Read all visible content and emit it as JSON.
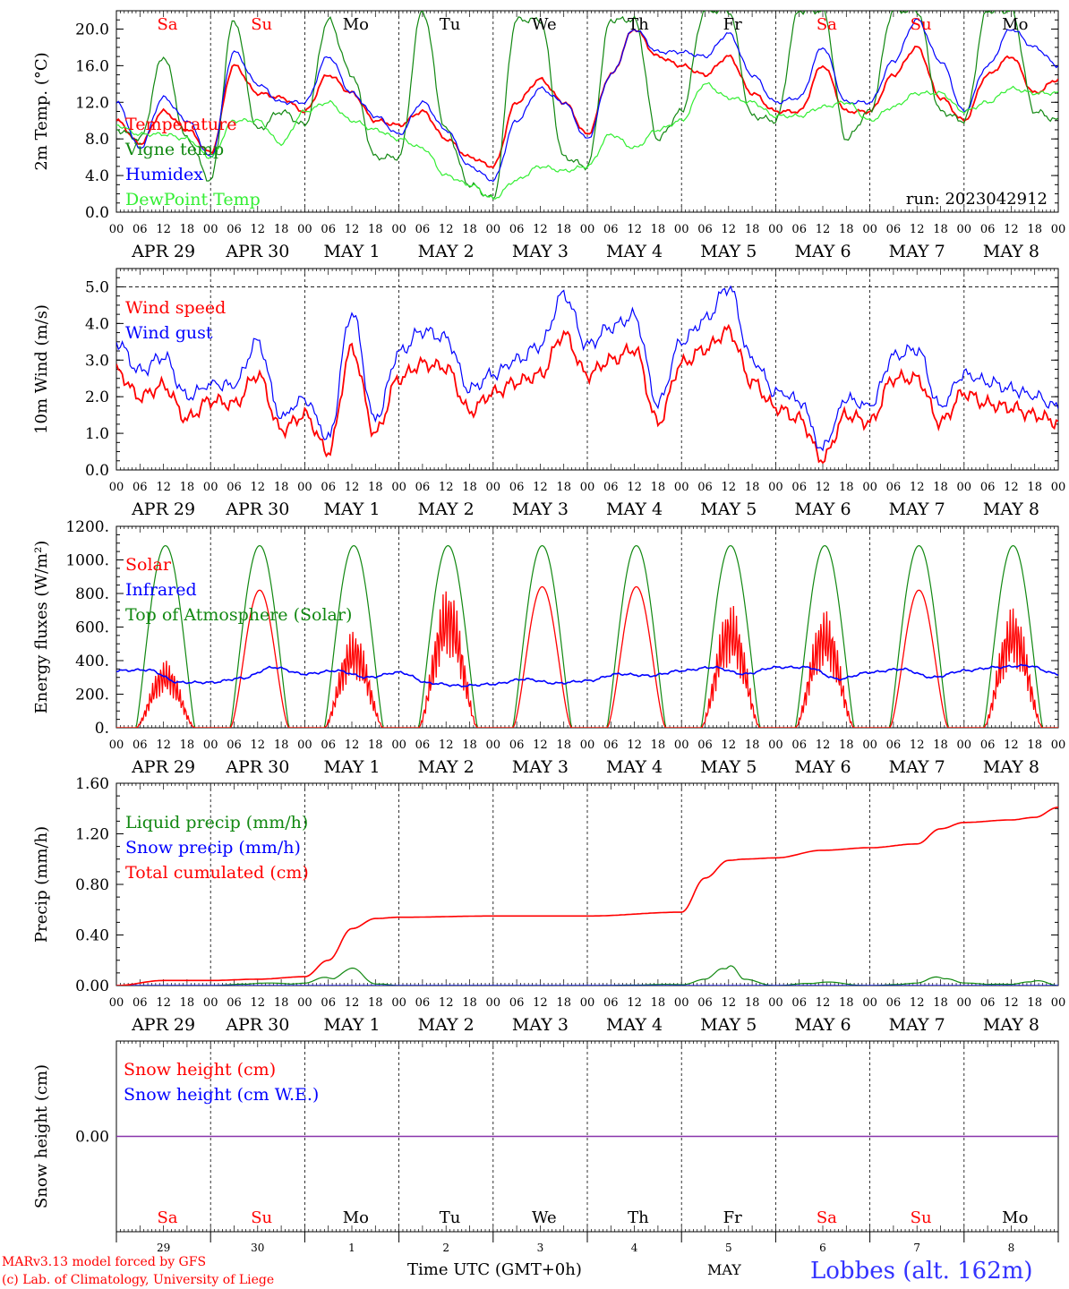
{
  "run_label": "run: 2023042912",
  "days": {
    "abbrev": [
      "Sa",
      "Su",
      "Mo",
      "Tu",
      "We",
      "Th",
      "Fr",
      "Sa",
      "Su",
      "Mo"
    ],
    "weekend": [
      true,
      true,
      false,
      false,
      false,
      false,
      false,
      true,
      true,
      false
    ],
    "dates": [
      "APR 29",
      "APR 30",
      "MAY  1",
      "MAY  2",
      "MAY  3",
      "MAY  4",
      "MAY  5",
      "MAY  6",
      "MAY  7",
      "MAY  8"
    ],
    "day_numbers": [
      "29",
      "30",
      "1",
      "2",
      "3",
      "4",
      "5",
      "6",
      "7",
      "8"
    ]
  },
  "hour_ticks": [
    "00",
    "06",
    "12",
    "18"
  ],
  "hour_tick_end": "00",
  "footer": {
    "model_line": "MARv3.13 model forced by GFS",
    "copyright_line": "(c) Lab. of Climatology, University of Liege",
    "time_label": "Time UTC (GMT+0h)",
    "month_label": "MAY",
    "station": "Lobbes (alt. 162m)"
  },
  "colors": {
    "red": "#ff0000",
    "dark_green": "#118811",
    "blue": "#0000ff",
    "light_green": "#33ee33",
    "purple": "#8833aa",
    "station": "#3333ff"
  },
  "chart_data": [
    {
      "type": "line",
      "ylabel": "2m Temp. (°C)",
      "ylim": [
        0,
        22
      ],
      "y_ticks": [
        "0.0",
        "4.0",
        "8.0",
        "12.0",
        "16.0",
        "20.0"
      ],
      "y_tick_values": [
        0,
        4,
        8,
        12,
        16,
        20
      ],
      "legend_placement": "top-left",
      "dashed_y": null,
      "x_hours": [
        0,
        6,
        12,
        18,
        24,
        30,
        36,
        42,
        48,
        54,
        60,
        66,
        72,
        78,
        84,
        90,
        96,
        102,
        108,
        114,
        120,
        126,
        132,
        138,
        144,
        150,
        156,
        162,
        168,
        174,
        180,
        186,
        192,
        198,
        204,
        210,
        216,
        222,
        228,
        234,
        240
      ],
      "series": [
        {
          "name": "Temperature",
          "color": "#ff0000",
          "values": [
            10,
            7.5,
            11,
            9,
            6.5,
            16,
            13,
            12.5,
            11,
            15,
            13,
            10,
            9.5,
            11,
            8,
            6,
            5,
            12,
            14.5,
            12,
            8.5,
            15,
            20,
            17,
            16,
            15,
            17,
            13,
            11,
            11,
            16,
            11,
            11,
            15,
            18,
            12.5,
            10,
            15,
            17,
            13,
            14.5
          ]
        },
        {
          "name": "Vigne temp",
          "color": "#118811",
          "values": [
            9,
            8,
            17,
            8,
            3.5,
            21,
            9,
            11,
            9.5,
            21,
            15,
            6,
            6,
            22,
            9,
            3,
            1.5,
            21,
            21,
            6,
            5,
            21,
            21,
            8,
            11,
            22,
            22,
            10.5,
            10,
            22,
            22,
            8,
            11,
            22,
            22,
            11,
            10,
            22,
            22,
            11,
            10
          ]
        },
        {
          "name": "Humidex",
          "color": "#0000ff",
          "values": [
            12,
            7,
            12.5,
            10,
            6,
            17.5,
            14,
            12,
            12,
            17,
            13,
            10.5,
            8.5,
            12,
            9,
            5,
            3.5,
            10,
            13.5,
            12,
            8,
            15,
            20,
            17.5,
            17.5,
            17,
            19.5,
            15,
            12,
            12.5,
            18,
            12,
            12,
            16.5,
            21,
            16.5,
            11,
            16,
            20,
            18,
            16
          ]
        },
        {
          "name": "DewPoint Temp",
          "color": "#33ee33",
          "values": [
            9.5,
            8.5,
            8.5,
            8,
            6,
            10,
            10,
            7.5,
            11,
            12,
            10,
            9,
            8,
            7,
            4,
            3,
            1.5,
            3.5,
            5,
            4.5,
            5,
            8.5,
            7,
            9,
            10,
            14,
            12.5,
            12,
            10.5,
            10.5,
            11.5,
            12,
            10,
            11.5,
            13,
            13,
            11,
            12,
            13.5,
            13,
            13
          ]
        }
      ]
    },
    {
      "type": "line",
      "ylabel": "10m Wind (m/s)",
      "ylim": [
        0,
        5.5
      ],
      "y_ticks": [
        "0.0",
        "1.0",
        "2.0",
        "3.0",
        "4.0",
        "5.0"
      ],
      "y_tick_values": [
        0,
        1,
        2,
        3,
        4,
        5
      ],
      "legend_placement": "top-left",
      "dashed_y": 5,
      "x_hours": [
        0,
        6,
        12,
        18,
        24,
        30,
        36,
        42,
        48,
        54,
        60,
        66,
        72,
        78,
        84,
        90,
        96,
        102,
        108,
        114,
        120,
        126,
        132,
        138,
        144,
        150,
        156,
        162,
        168,
        174,
        180,
        186,
        192,
        198,
        204,
        210,
        216,
        222,
        228,
        234,
        240
      ],
      "series": [
        {
          "name": "Wind speed",
          "color": "#ff0000",
          "values": [
            2.7,
            2,
            2.3,
            1.4,
            1.9,
            1.8,
            2.6,
            1.1,
            1.5,
            0.5,
            3.3,
            1,
            2.5,
            2.9,
            2.8,
            1.6,
            2.1,
            2.4,
            2.6,
            3.7,
            2.6,
            3,
            3.3,
            1.3,
            2.9,
            3.3,
            3.8,
            2.4,
            1.7,
            1.4,
            0.3,
            1.5,
            1.3,
            2.5,
            2.5,
            1.3,
            2.1,
            1.8,
            1.7,
            1.5,
            1.3
          ]
        },
        {
          "name": "Wind gust",
          "color": "#0000ff",
          "values": [
            3.5,
            2.7,
            3.1,
            2,
            2.3,
            2.3,
            3.5,
            1.4,
            1.9,
            0.8,
            4.3,
            1.3,
            3.2,
            3.8,
            3.6,
            2.2,
            2.6,
            3,
            3.4,
            4.8,
            3.4,
            3.9,
            4.2,
            1.8,
            3.5,
            4.1,
            5,
            3,
            2.1,
            1.9,
            0.4,
            1.9,
            1.7,
            3.1,
            3.3,
            1.7,
            2.6,
            2.4,
            2.2,
            2,
            1.7
          ]
        }
      ]
    },
    {
      "type": "line",
      "ylabel": "Energy fluxes (W/m²)",
      "ylim": [
        0,
        1200
      ],
      "y_ticks": [
        "0.",
        "200.",
        "400.",
        "600.",
        "800.",
        "1000.",
        "1200."
      ],
      "y_tick_values": [
        0,
        200,
        400,
        600,
        800,
        1000,
        1200
      ],
      "legend_placement": "top-left",
      "dashed_y": null,
      "solar_peaks": [
        400,
        820,
        580,
        840,
        840,
        840,
        740,
        700,
        820,
        720
      ],
      "toa_peak": 1085,
      "daylight_hours": [
        5,
        20
      ],
      "series": [
        {
          "name": "Solar",
          "color": "#ff0000",
          "values": "daily bell curves peaking at solar_peaks (see chart)"
        },
        {
          "name": "Infrared",
          "color": "#0000ff",
          "values": [
            340,
            345,
            270,
            270,
            295,
            360,
            320,
            340,
            300,
            330,
            265,
            250,
            260,
            290,
            265,
            280,
            320,
            310,
            340,
            360,
            320,
            360,
            360,
            290,
            330,
            350,
            300,
            340,
            360,
            370,
            320
          ]
        },
        {
          "name": "Top of Atmosphere (Solar)",
          "color": "#118811",
          "values": "daily bell curves peaking at 1085 W/m²"
        }
      ]
    },
    {
      "type": "line",
      "ylabel": "Precip (mm/h)",
      "ylim": [
        0,
        1.6
      ],
      "y_ticks": [
        "0.00",
        "0.40",
        "0.80",
        "1.20",
        "1.60"
      ],
      "y_tick_values": [
        0,
        0.4,
        0.8,
        1.2,
        1.6
      ],
      "legend_placement": "top-left",
      "dashed_y": null,
      "x_hours": [
        0,
        12,
        24,
        36,
        48,
        54,
        60,
        66,
        72,
        96,
        120,
        144,
        150,
        156,
        160,
        168,
        180,
        192,
        204,
        210,
        216,
        228,
        234,
        240
      ],
      "series": [
        {
          "name": "Liquid precip (mm/h)",
          "color": "#118811",
          "values": [
            0,
            0,
            0,
            0.02,
            0.02,
            0.08,
            0.14,
            0.02,
            0,
            0,
            0,
            0.01,
            0.05,
            0.22,
            0.05,
            0,
            0.03,
            0,
            0.02,
            0.09,
            0.02,
            0.01,
            0.05,
            0
          ]
        },
        {
          "name": "Snow precip (mm/h)",
          "color": "#0000ff",
          "values": [
            0,
            0,
            0,
            0,
            0,
            0,
            0,
            0,
            0,
            0,
            0,
            0,
            0,
            0,
            0,
            0,
            0,
            0,
            0,
            0,
            0,
            0,
            0,
            0
          ]
        },
        {
          "name": "Total cumulated (cm)",
          "color": "#ff0000",
          "values": [
            0,
            0.04,
            0.04,
            0.05,
            0.07,
            0.2,
            0.45,
            0.53,
            0.54,
            0.55,
            0.55,
            0.58,
            0.85,
            0.99,
            1.0,
            1.01,
            1.07,
            1.09,
            1.12,
            1.24,
            1.29,
            1.31,
            1.33,
            1.41
          ]
        }
      ]
    },
    {
      "type": "line",
      "ylabel": "Snow height (cm)",
      "ylim": [
        -1,
        1
      ],
      "y_ticks": [
        "0.00"
      ],
      "y_tick_values": [
        0
      ],
      "legend_placement": "top-left",
      "dashed_y": null,
      "series": [
        {
          "name": "Snow height (cm)",
          "color": "#ff0000",
          "values": [
            0,
            0
          ]
        },
        {
          "name": "Snow height (cm W.E.)",
          "color": "#0000ff",
          "values": [
            0,
            0
          ]
        }
      ]
    }
  ]
}
